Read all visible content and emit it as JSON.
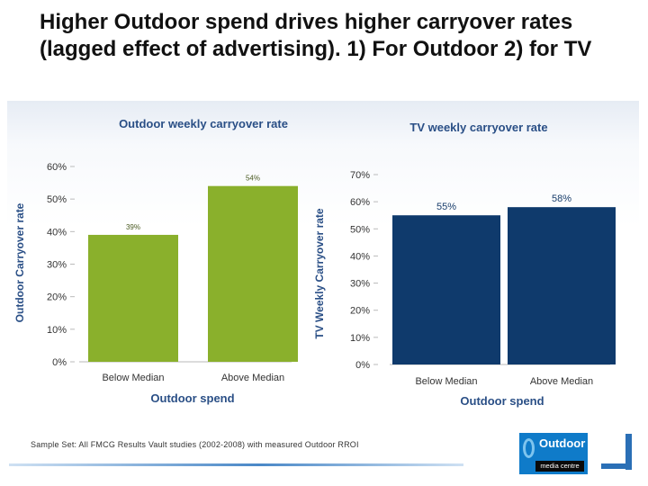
{
  "slide": {
    "title": "Higher Outdoor spend drives higher carryover rates (lagged effect of advertising). 1) For Outdoor   2) for TV",
    "footnote": "Sample Set: All FMCG Results Vault studies (2002-2008) with measured Outdoor RROI",
    "logo": {
      "main": "Outdoor",
      "sub": "media centre"
    }
  },
  "colors": {
    "outdoor_bar": "#8ab02c",
    "tv_bar": "#0f3a6c",
    "title_blue": "#2a4f86",
    "axis_label": "#2a4f86"
  },
  "chart_data": [
    {
      "type": "bar",
      "title": "Outdoor weekly carryover rate",
      "categories": [
        "Below Median",
        "Above Median"
      ],
      "values": [
        39,
        54
      ],
      "data_labels": [
        "39%",
        "54%"
      ],
      "xlabel": "Outdoor spend",
      "ylabel": "Outdoor Carryover rate",
      "ylim": [
        0,
        60
      ],
      "yticks": [
        "0%",
        "10%",
        "20%",
        "30%",
        "40%",
        "50%",
        "60%"
      ]
    },
    {
      "type": "bar",
      "title": "TV weekly carryover rate",
      "categories": [
        "Below Median",
        "Above Median"
      ],
      "values": [
        55,
        58
      ],
      "data_labels": [
        "55%",
        "58%"
      ],
      "xlabel": "Outdoor spend",
      "ylabel": "TV Weekly Carryover rate",
      "ylim": [
        0,
        70
      ],
      "yticks": [
        "0%",
        "10%",
        "20%",
        "30%",
        "40%",
        "50%",
        "60%",
        "70%"
      ]
    }
  ]
}
